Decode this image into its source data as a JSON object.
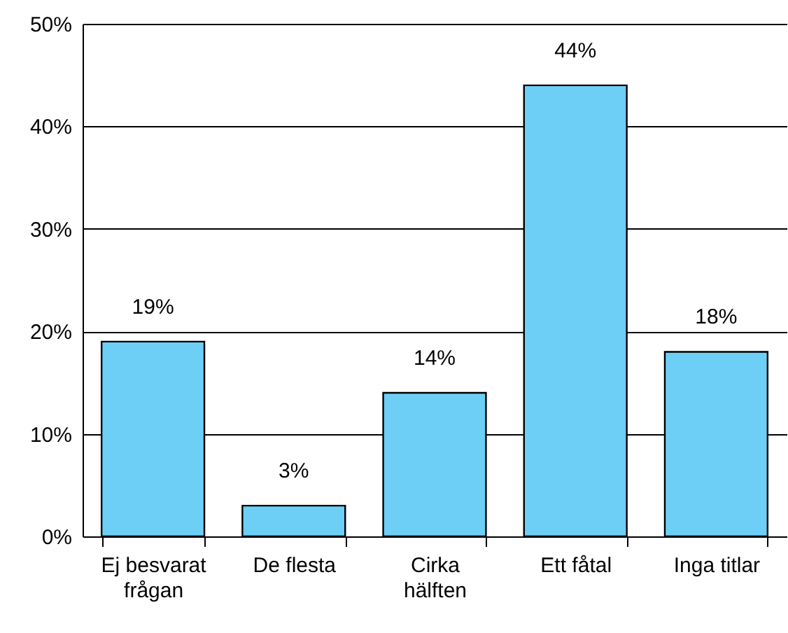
{
  "chart_data": {
    "type": "bar",
    "categories": [
      "Ej besvarat frågan",
      "De flesta",
      "Cirka hälften",
      "Ett fåtal",
      "Inga titlar"
    ],
    "values": [
      19,
      3,
      14,
      44,
      18
    ],
    "color": "#6dcff6",
    "value_labels": [
      "19%",
      "3%",
      "14%",
      "44%",
      "18%"
    ],
    "ylim": [
      0,
      50
    ],
    "yticks": [
      {
        "value": 0,
        "label": "0%"
      },
      {
        "value": 10,
        "label": "10%"
      },
      {
        "value": 20,
        "label": "20%"
      },
      {
        "value": 30,
        "label": "30%"
      },
      {
        "value": 40,
        "label": "40%"
      },
      {
        "value": 50,
        "label": "50%"
      }
    ],
    "grid": "y"
  }
}
